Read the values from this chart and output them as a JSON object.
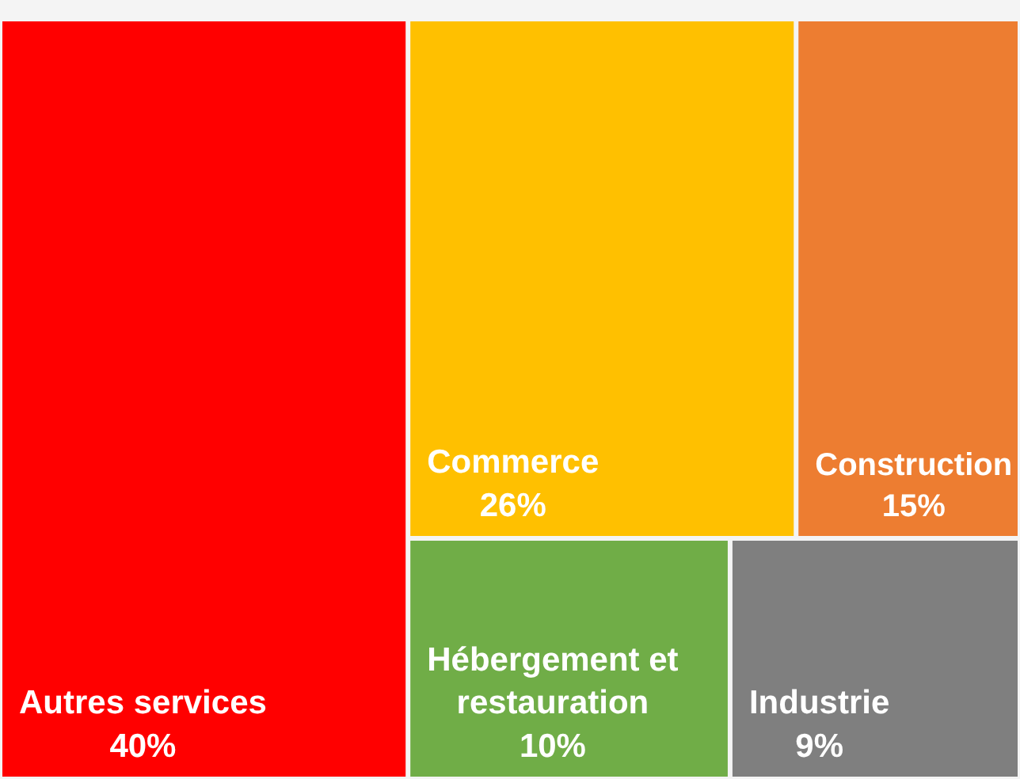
{
  "chart_data": {
    "type": "other",
    "categories": [
      "Autres services",
      "Commerce",
      "Construction",
      "Hébergement et restauration",
      "Industrie"
    ],
    "values": [
      40,
      26,
      15,
      10,
      9
    ],
    "value_labels": [
      "40%",
      "26%",
      "15%",
      "10%",
      "9%"
    ],
    "colors": [
      "#ff0000",
      "#ffc000",
      "#ed7d31",
      "#70ad47",
      "#7f7f7f"
    ]
  }
}
